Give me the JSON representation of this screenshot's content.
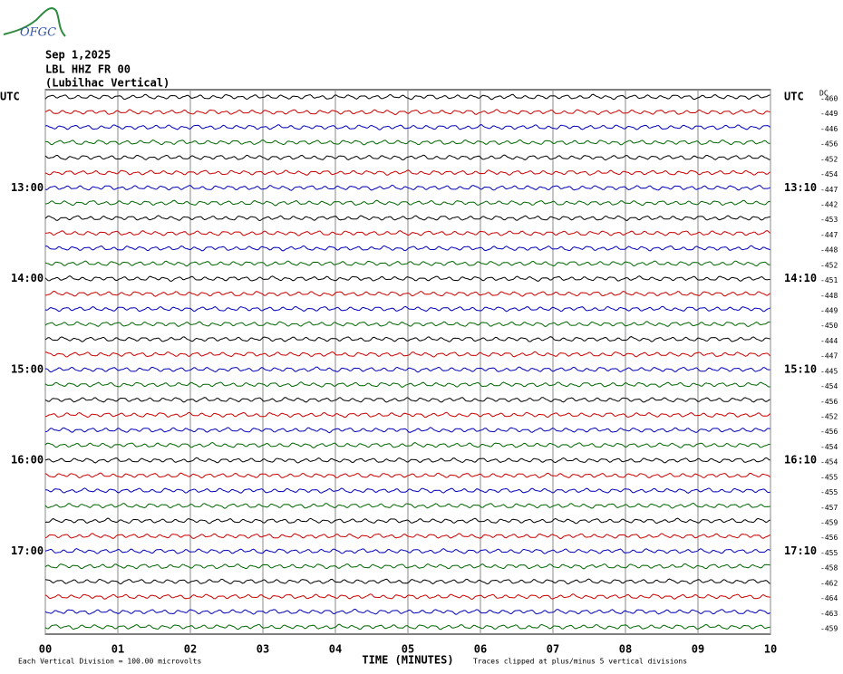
{
  "chart_data": {
    "type": "helicorder",
    "logo": "OFGC",
    "title": "Sep 1,2025",
    "subtitle": [
      "LBL HHZ FR 00",
      "(Lubilhac Vertical)"
    ],
    "xlabel": "TIME (MINUTES)",
    "xlim": [
      0,
      10
    ],
    "xticks": [
      {
        "value": 0,
        "label": "00"
      },
      {
        "value": 1,
        "label": "01"
      },
      {
        "value": 2,
        "label": "02"
      },
      {
        "value": 3,
        "label": "03"
      },
      {
        "value": 4,
        "label": "04"
      },
      {
        "value": 5,
        "label": "05"
      },
      {
        "value": 6,
        "label": "06"
      },
      {
        "value": 7,
        "label": "07"
      },
      {
        "value": 8,
        "label": "08"
      },
      {
        "value": 9,
        "label": "09"
      },
      {
        "value": 10,
        "label": "10"
      }
    ],
    "grid": true,
    "left_labels": [
      "UTC",
      null,
      null,
      null,
      null,
      null,
      "13:00",
      null,
      null,
      null,
      null,
      null,
      "14:00",
      null,
      null,
      null,
      null,
      null,
      "15:00",
      null,
      null,
      null,
      null,
      null,
      "16:00",
      null,
      null,
      null,
      null,
      null,
      "17:00",
      null,
      null,
      null,
      null,
      null
    ],
    "right_labels": [
      "UTC",
      null,
      null,
      null,
      null,
      null,
      "13:10",
      null,
      null,
      null,
      null,
      null,
      "14:10",
      null,
      null,
      null,
      null,
      null,
      "15:10",
      null,
      null,
      null,
      null,
      null,
      "16:10",
      null,
      null,
      null,
      null,
      null,
      "17:10",
      null,
      null,
      null,
      null,
      null
    ],
    "dc_label": "DC",
    "dc_values": [
      -460,
      -449,
      -446,
      -456,
      -452,
      -454,
      -447,
      -442,
      -453,
      -447,
      -448,
      -452,
      -451,
      -448,
      -449,
      -450,
      -444,
      -447,
      -445,
      -454,
      -456,
      -452,
      -456,
      -454,
      -454,
      -455,
      -455,
      -457,
      -459,
      -456,
      -455,
      -458,
      -462,
      -464,
      -463,
      -459
    ],
    "trace_colors": [
      "#000000",
      "#cc0000",
      "#0000bb",
      "#006600"
    ],
    "footer_left": "Each Vertical Division =  100.00 microvolts",
    "footer_right": "Traces clipped at plus/minus 5 vertical divisions"
  }
}
